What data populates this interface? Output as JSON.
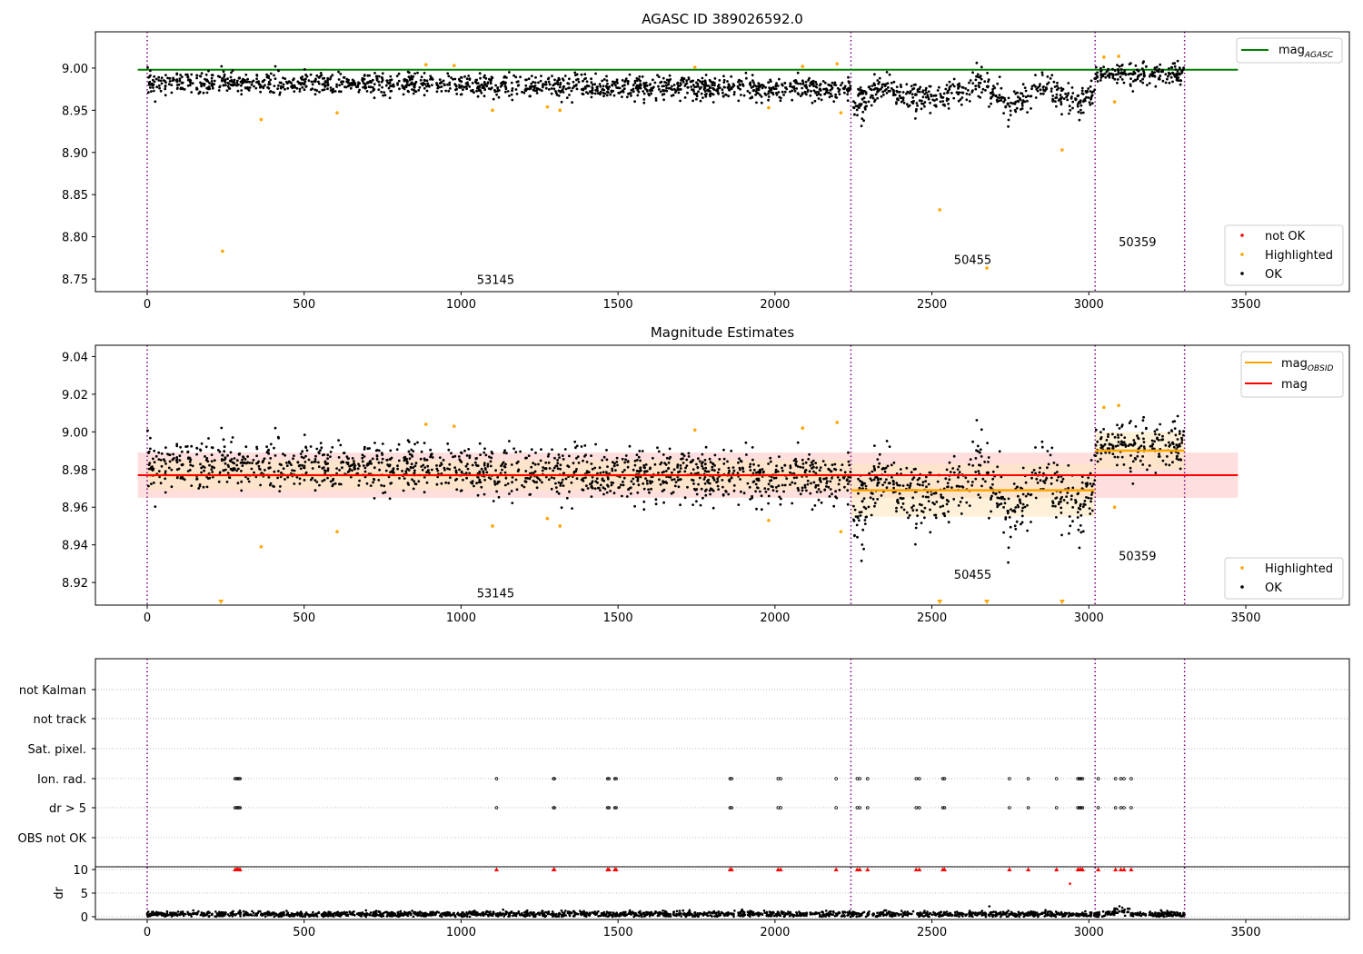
{
  "colors": {
    "ok": "#000000",
    "highlighted": "#ffa500",
    "not_ok": "#ff0000",
    "mag_agasc": "#008000",
    "mag": "#ff0000",
    "mag_obsid": "#ffa500",
    "obs_boundary": "#800080",
    "band_mag": "#ffd6d6",
    "band_obsid": "#ffe7c0"
  },
  "chart_data": [
    {
      "type": "scatter",
      "title": "AGASC ID 389026592.0",
      "x_range": [
        -165,
        3830
      ],
      "y_range": [
        8.735,
        9.043
      ],
      "x_ticks": [
        0,
        500,
        1000,
        1500,
        2000,
        2500,
        3000,
        3500
      ],
      "y_ticks": [
        8.75,
        8.8,
        8.85,
        8.9,
        8.95,
        9.0
      ],
      "legend_upper": [
        "mag",
        "AGASC"
      ],
      "legend_lower": [
        "not OK",
        "Highlighted",
        "OK"
      ],
      "legend_upper_pos": "top-right",
      "legend_lower_pos": "bottom-right",
      "lines": [
        {
          "name": "mag_AGASC",
          "x": [
            -30,
            3475
          ],
          "y": [
            8.998,
            8.998
          ]
        }
      ],
      "obs_boundaries_x": [
        0,
        2242,
        3020,
        3305
      ],
      "obsid_labels": [
        {
          "text": "53145",
          "x": 1110,
          "y": 8.744
        },
        {
          "text": "50455",
          "x": 2630,
          "y": 8.768
        },
        {
          "text": "50359",
          "x": 3155,
          "y": 8.789
        }
      ],
      "ok_trend": [
        {
          "x": [
            0,
            2242
          ],
          "y": [
            8.983,
            8.975
          ]
        },
        {
          "x": [
            2250,
            2350,
            2450,
            2550,
            2650,
            2750,
            2850,
            2950,
            3020
          ],
          "y": [
            8.955,
            8.98,
            8.962,
            8.968,
            8.985,
            8.955,
            8.98,
            8.955,
            8.97
          ]
        },
        {
          "x": [
            3020,
            3305
          ],
          "y": [
            8.992,
            8.992
          ]
        }
      ],
      "highlighted": [
        {
          "x": 240,
          "y": 8.783
        },
        {
          "x": 363,
          "y": 8.939
        },
        {
          "x": 605,
          "y": 8.947
        },
        {
          "x": 888,
          "y": 9.004
        },
        {
          "x": 978,
          "y": 9.003
        },
        {
          "x": 1100,
          "y": 8.95
        },
        {
          "x": 1275,
          "y": 8.954
        },
        {
          "x": 1315,
          "y": 8.95
        },
        {
          "x": 1745,
          "y": 9.001
        },
        {
          "x": 1980,
          "y": 8.953
        },
        {
          "x": 2088,
          "y": 9.002
        },
        {
          "x": 2198,
          "y": 9.005
        },
        {
          "x": 2210,
          "y": 8.947
        },
        {
          "x": 2525,
          "y": 8.832
        },
        {
          "x": 2675,
          "y": 8.763
        },
        {
          "x": 2915,
          "y": 8.903
        },
        {
          "x": 3048,
          "y": 9.013
        },
        {
          "x": 3082,
          "y": 8.96
        },
        {
          "x": 3095,
          "y": 9.014
        }
      ]
    },
    {
      "type": "scatter",
      "title": "Magnitude Estimates",
      "x_range": [
        -165,
        3830
      ],
      "y_range": [
        8.908,
        9.046
      ],
      "x_ticks": [
        0,
        500,
        1000,
        1500,
        2000,
        2500,
        3000,
        3500
      ],
      "y_ticks": [
        8.92,
        8.94,
        8.96,
        8.98,
        9.0,
        9.02,
        9.04
      ],
      "legend_upper": [
        "mag",
        "OBSID",
        "mag"
      ],
      "legend_lower": [
        "Highlighted",
        "OK"
      ],
      "legend_upper_pos": "top-right",
      "legend_lower_pos": "bottom-right",
      "mag_line": {
        "x": [
          -30,
          3475
        ],
        "y": 8.977
      },
      "mag_band": {
        "x": [
          -30,
          3475
        ],
        "y": [
          8.965,
          8.989
        ]
      },
      "obsid_segments": [
        {
          "x": [
            0,
            2242
          ],
          "y": 8.977,
          "band": [
            8.969,
            8.985
          ]
        },
        {
          "x": [
            2242,
            3020
          ],
          "y": 8.969,
          "band": [
            8.955,
            8.983
          ]
        },
        {
          "x": [
            3020,
            3305
          ],
          "y": 8.99,
          "band": [
            8.98,
            9.0
          ]
        }
      ],
      "obs_boundaries_x": [
        0,
        2242,
        3020,
        3305
      ],
      "obsid_labels": [
        {
          "text": "53145",
          "x": 1110,
          "y": 8.912
        },
        {
          "text": "50455",
          "x": 2630,
          "y": 8.922
        },
        {
          "text": "50359",
          "x": 3155,
          "y": 8.932
        }
      ],
      "offscale_markers_x": [
        235,
        2525,
        2675,
        2915
      ]
    },
    {
      "type": "scatter",
      "title": "",
      "x_range": [
        -165,
        3830
      ],
      "x_ticks": [
        0,
        500,
        1000,
        1500,
        2000,
        2500,
        3000,
        3500
      ],
      "flag_rows": [
        "not Kalman",
        "not track",
        "Sat. pixel.",
        "Ion. rad.",
        "dr > 5",
        "OBS not OK"
      ],
      "flag_x": [
        280,
        285,
        288,
        292,
        296,
        1113,
        1295,
        1297,
        1467,
        1471,
        1490,
        1494,
        1857,
        1862,
        2010,
        2018,
        2195,
        2262,
        2270,
        2295,
        2450,
        2460,
        2535,
        2540,
        2747,
        2807,
        2897,
        2965,
        2970,
        2975,
        2980,
        3030,
        3085,
        3102,
        3112,
        3135
      ],
      "dr_label": "dr",
      "dr_ticks": [
        0,
        5,
        10
      ],
      "dr_range": [
        -1,
        12
      ],
      "dr_clipped_x": [
        280,
        285,
        288,
        292,
        296,
        1113,
        1295,
        1297,
        1467,
        1471,
        1490,
        1494,
        1857,
        1862,
        2010,
        2018,
        2195,
        2262,
        2270,
        2295,
        2450,
        2460,
        2535,
        2540,
        2747,
        2807,
        2897,
        2965,
        2970,
        2975,
        2980,
        3030,
        3085,
        3102,
        3112,
        3135
      ],
      "dr_outliers": [
        {
          "x": 2940,
          "y": 7
        },
        {
          "x": 2683,
          "y": 2.2
        }
      ],
      "obs_boundaries_x": [
        0,
        2242,
        3020,
        3305
      ]
    }
  ]
}
